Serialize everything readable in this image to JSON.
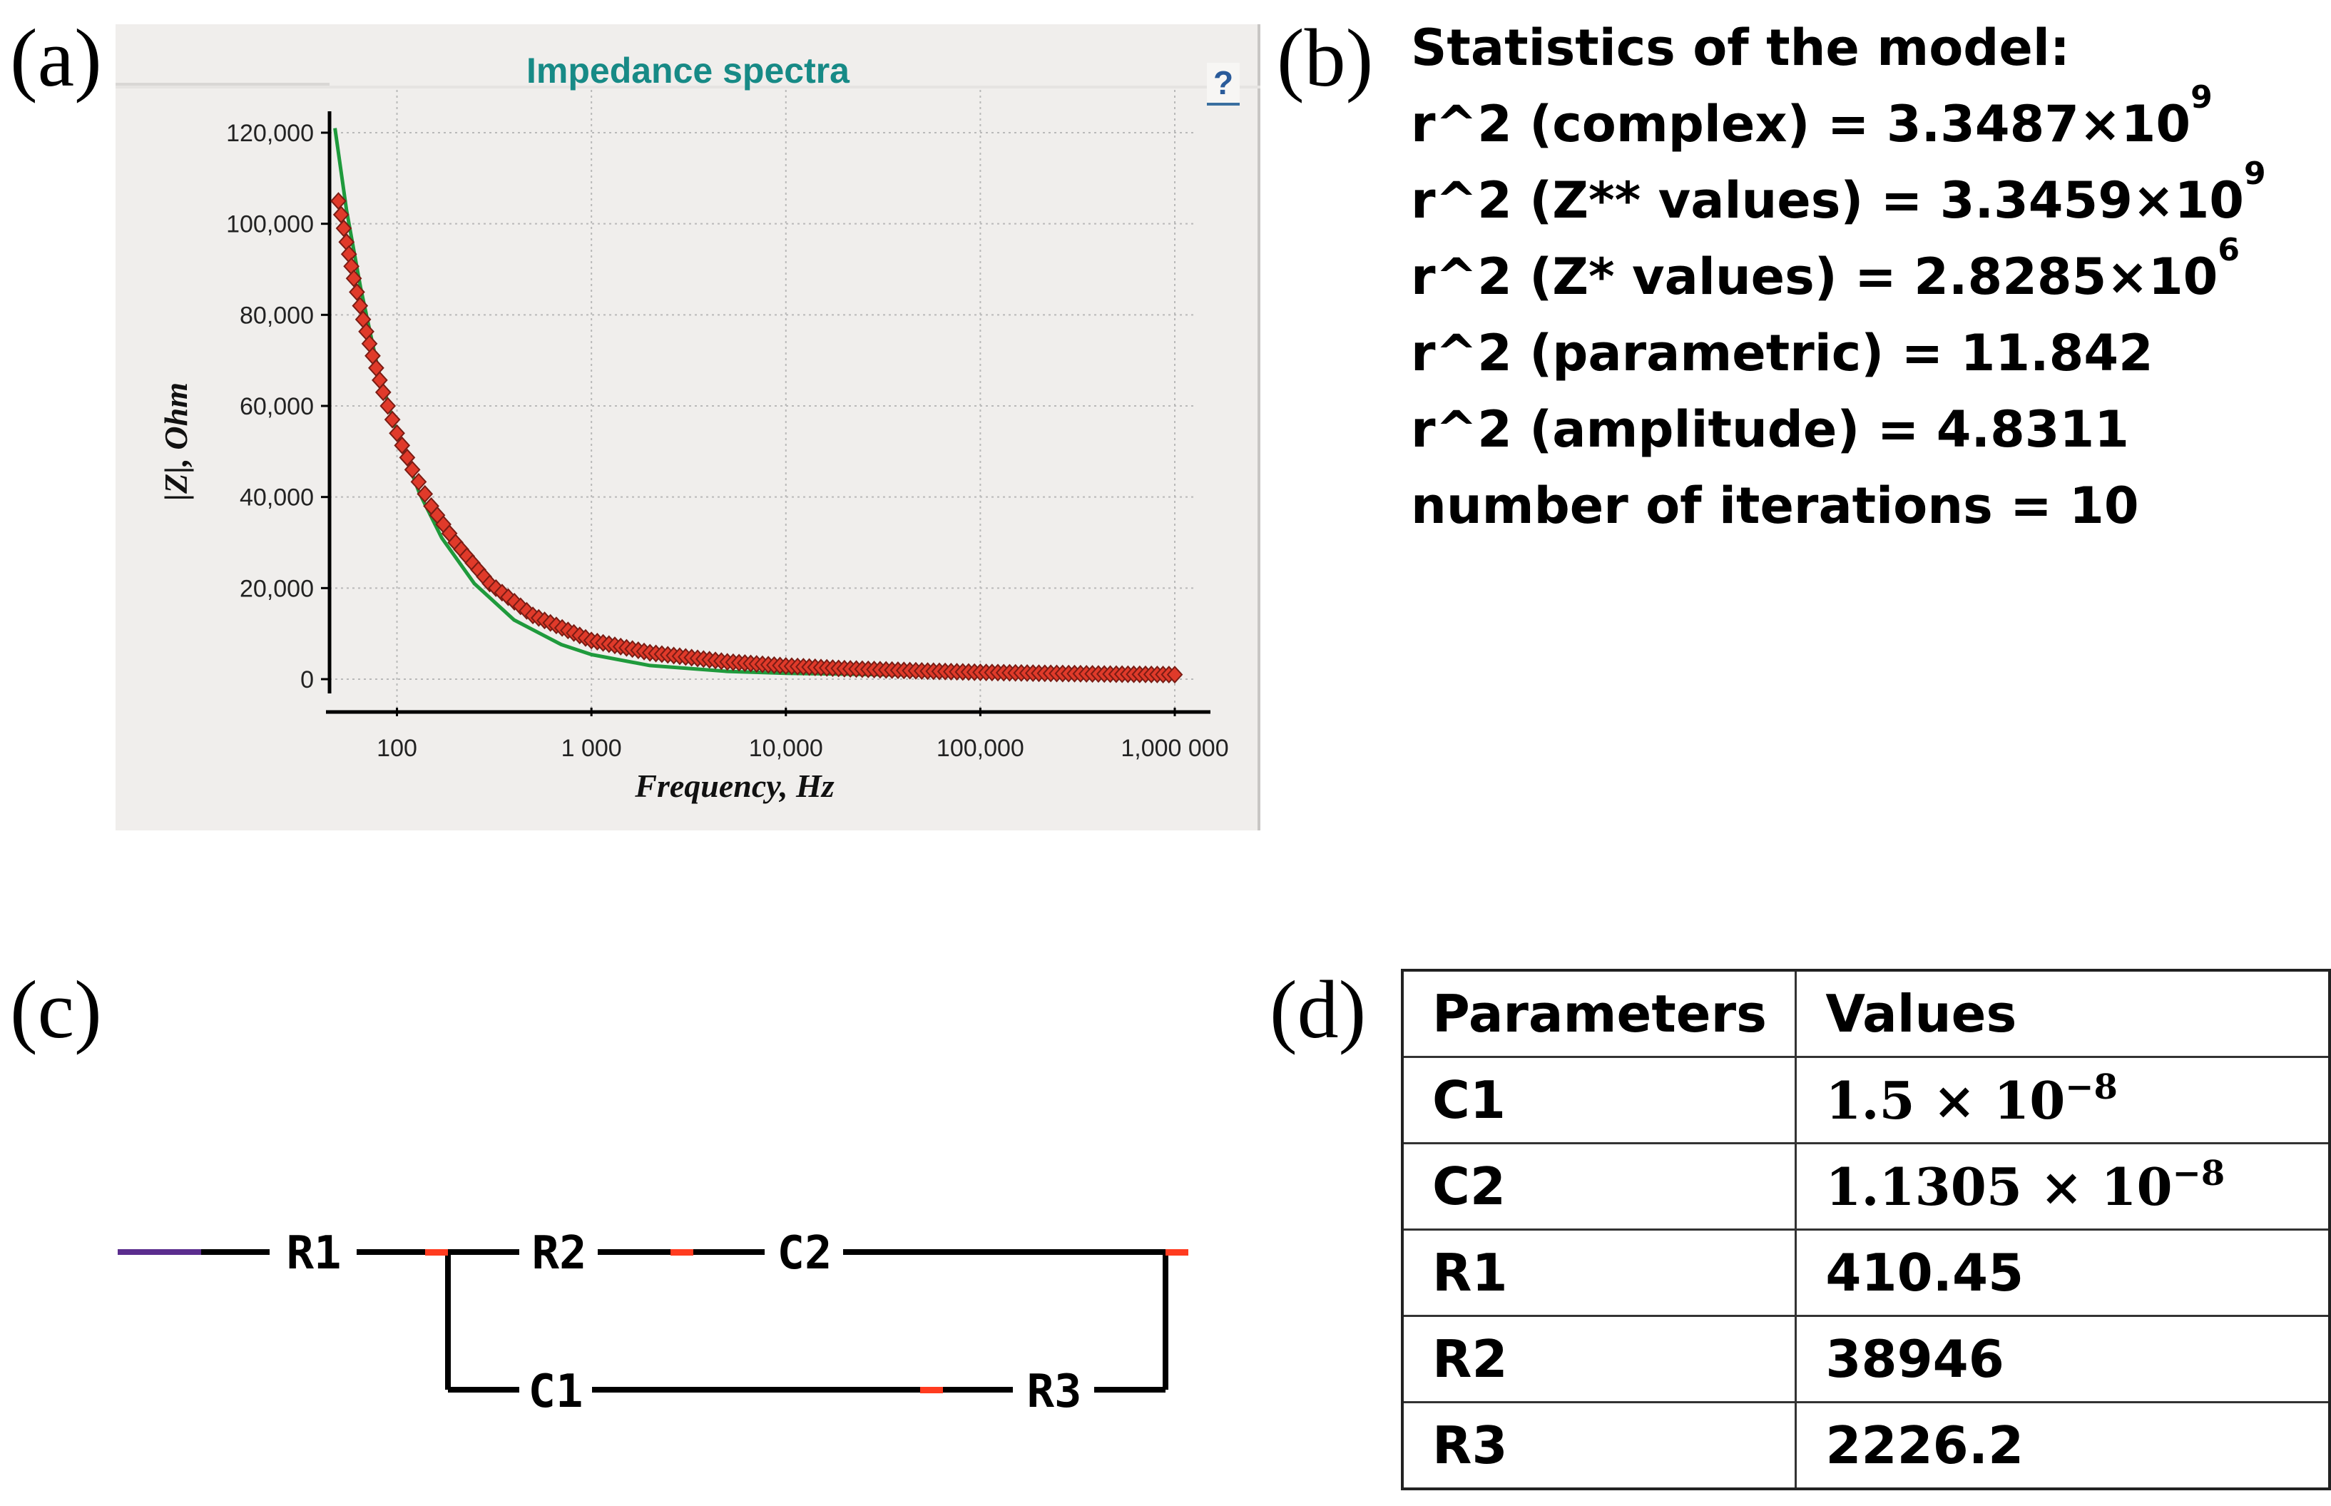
{
  "panels": {
    "a": "(a)",
    "b": "(b)",
    "c": "(c)",
    "d": "(d)"
  },
  "colors": {
    "title": "#178a86",
    "fit_line": "#1f9a3c",
    "measured": "#e03a2a",
    "window_bg": "#f0eeec",
    "wire_accent": "#5b2d8e",
    "node": "#ff3b1f"
  },
  "chart_data": {
    "type": "scatter",
    "title": "Impedance spectra",
    "help_label": "?",
    "xlabel": "Frequency, Hz",
    "ylabel": "|Z|, Ohm",
    "x_scale": "log",
    "xlim": [
      45,
      1000000
    ],
    "ylim": [
      0,
      120000
    ],
    "x_ticks": [
      100,
      1000,
      10000,
      100000,
      1000000
    ],
    "x_tick_labels": [
      "100",
      "1 000",
      "10,000",
      "100,000",
      "1,000 000"
    ],
    "y_ticks": [
      0,
      20000,
      40000,
      60000,
      80000,
      100000,
      120000
    ],
    "y_tick_labels": [
      "0",
      "20,000",
      "40,000",
      "60,000",
      "80,000",
      "100,000",
      "120,000"
    ],
    "grid": true,
    "series": [
      {
        "kind": "markers",
        "color": "#e03a2a",
        "x": [
          50,
          55,
          60,
          67,
          75,
          85,
          100,
          120,
          150,
          200,
          300,
          500,
          1000,
          2000,
          5000,
          10000,
          20000,
          50000,
          100000,
          200000,
          500000,
          1000000
        ],
        "y": [
          105000,
          96000,
          88000,
          79000,
          71000,
          63000,
          54000,
          46000,
          38000,
          30000,
          21000,
          14000,
          8500,
          5800,
          3800,
          2900,
          2300,
          1800,
          1500,
          1300,
          1100,
          1000
        ]
      },
      {
        "kind": "line",
        "color": "#1f9a3c",
        "x": [
          48,
          55,
          65,
          80,
          100,
          130,
          170,
          250,
          400,
          700,
          1000,
          2000,
          5000,
          10000,
          30000,
          100000,
          1000000
        ],
        "y": [
          121000,
          103000,
          86000,
          68000,
          54000,
          41000,
          31000,
          21000,
          13000,
          7600,
          5400,
          3000,
          1700,
          1300,
          1000,
          900,
          850
        ]
      }
    ]
  },
  "stats": {
    "heading": "Statistics of the model:",
    "lines": [
      {
        "label": "r^2 (complex) = 3.3487×10",
        "exp": "9"
      },
      {
        "label": "r^2 (Z** values) = 3.3459×10",
        "exp": "9"
      },
      {
        "label": "r^2 (Z* values) = 2.8285×10",
        "exp": "6"
      },
      {
        "label": "r^2 (parametric) = 11.842",
        "exp": ""
      },
      {
        "label": "r^2 (amplitude) = 4.8311",
        "exp": ""
      },
      {
        "label": "number of iterations = 10",
        "exp": ""
      }
    ]
  },
  "circuit": {
    "labels": {
      "r1": "R1",
      "r2": "R2",
      "c2": "C2",
      "c1": "C1",
      "r3": "R3"
    }
  },
  "table": {
    "headers": [
      "Parameters",
      "Values"
    ],
    "rows": [
      {
        "param": "C1",
        "value": "1.5 × 10",
        "exp": "−8"
      },
      {
        "param": "C2",
        "value": "1.1305 × 10",
        "exp": "−8"
      },
      {
        "param": "R1",
        "value": "410.45",
        "exp": ""
      },
      {
        "param": "R2",
        "value": "38946",
        "exp": ""
      },
      {
        "param": "R3",
        "value": "2226.2",
        "exp": ""
      }
    ]
  }
}
